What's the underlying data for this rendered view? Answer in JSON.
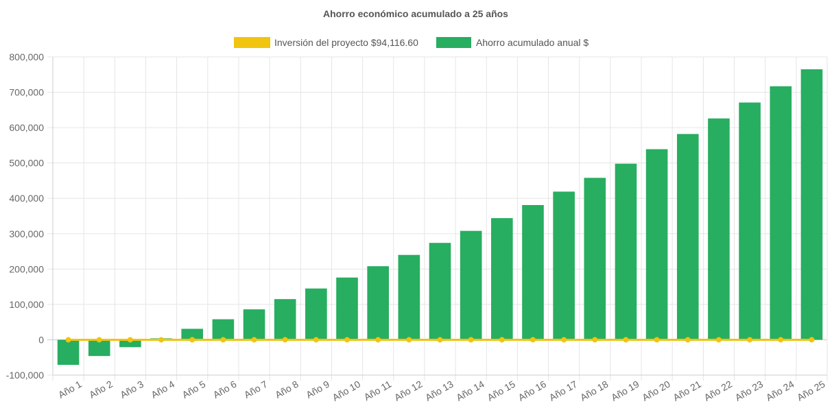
{
  "chart_data": {
    "type": "bar",
    "title": "Ahorro económico acumulado a 25 años",
    "categories": [
      "Año 1",
      "Año 2",
      "Año 3",
      "Año 4",
      "Año 5",
      "Año 6",
      "Año 7",
      "Año 8",
      "Año 9",
      "Año 10",
      "Año 11",
      "Año 12",
      "Año 13",
      "Año 14",
      "Año 15",
      "Año 16",
      "Año 17",
      "Año 18",
      "Año 19",
      "Año 20",
      "Año 21",
      "Año 22",
      "Año 23",
      "Año 24",
      "Año 25"
    ],
    "series": [
      {
        "name": "Inversión del proyecto $94,116.60",
        "type": "line",
        "color": "#f1c40f",
        "values": [
          0,
          0,
          0,
          0,
          0,
          0,
          0,
          0,
          0,
          0,
          0,
          0,
          0,
          0,
          0,
          0,
          0,
          0,
          0,
          0,
          0,
          0,
          0,
          0,
          0
        ]
      },
      {
        "name": "Ahorro acumulado anual $",
        "type": "bar",
        "color": "#27ae60",
        "values": [
          -71000,
          -46000,
          -21000,
          4000,
          31000,
          58000,
          86000,
          115000,
          145000,
          176000,
          208000,
          240000,
          274000,
          308000,
          344000,
          381000,
          419000,
          458000,
          498000,
          539000,
          582000,
          626000,
          671000,
          717000,
          765000
        ]
      }
    ],
    "yticks": [
      "800,000",
      "700,000",
      "600,000",
      "500,000",
      "400,000",
      "300,000",
      "200,000",
      "100,000",
      "0",
      "-100,000"
    ],
    "ylim": [
      -100000,
      800000
    ],
    "xlabel": "",
    "ylabel": "",
    "grid": true,
    "legend": "top-center"
  }
}
